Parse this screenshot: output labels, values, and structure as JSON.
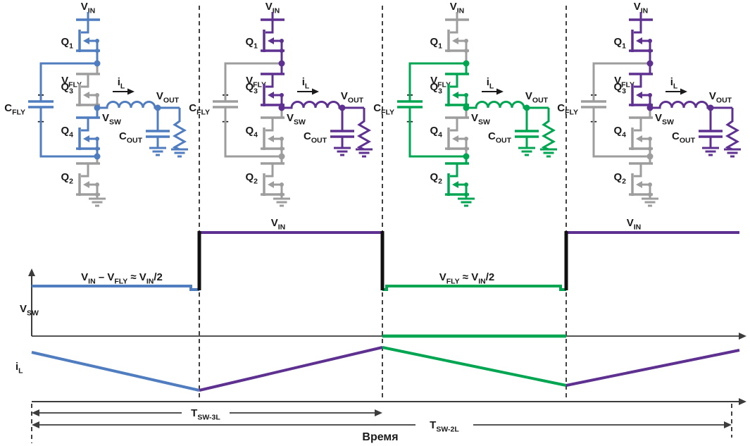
{
  "figure": {
    "type": "3-level buck converter switching states and waveforms",
    "background": "#ffffff"
  },
  "colors": {
    "blue": "#4f7dbf",
    "purple": "#5e3191",
    "green": "#00a551",
    "gray": "#9d9d9d",
    "ink": "#1a1a1a",
    "axis": "#3c3c3c",
    "step": "#111111"
  },
  "labels": {
    "vin": [
      {
        "t": "V"
      },
      {
        "s": "IN"
      }
    ],
    "q1": [
      {
        "t": "Q"
      },
      {
        "s": "1"
      }
    ],
    "q3": [
      {
        "t": "Q"
      },
      {
        "s": "3"
      }
    ],
    "q4": [
      {
        "t": "Q"
      },
      {
        "s": "4"
      }
    ],
    "q2": [
      {
        "t": "Q"
      },
      {
        "s": "2"
      }
    ],
    "vfly": [
      {
        "t": "V"
      },
      {
        "s": "FLY"
      }
    ],
    "plus": "+",
    "minus": "–",
    "cfly": [
      {
        "t": "C"
      },
      {
        "s": "FLY"
      }
    ],
    "il": [
      {
        "t": "i"
      },
      {
        "s": "L"
      }
    ],
    "vsw": [
      {
        "t": "V"
      },
      {
        "s": "SW"
      }
    ],
    "vout": [
      {
        "t": "V"
      },
      {
        "s": "OUT"
      }
    ],
    "cout": [
      {
        "t": "C"
      },
      {
        "s": "OUT"
      }
    ]
  },
  "circuits": [
    {
      "name": "state-1",
      "accent": "blue",
      "switches_on": [
        "Q1",
        "Q4"
      ],
      "active": {
        "vin_lead": true,
        "q1": true,
        "q3": false,
        "q4": true,
        "q2": false,
        "cfly": true,
        "node_b": true
      }
    },
    {
      "name": "state-2",
      "accent": "purple",
      "switches_on": [
        "Q1",
        "Q3"
      ],
      "active": {
        "vin_lead": true,
        "q1": true,
        "q3": true,
        "q4": false,
        "q2": false,
        "cfly": false,
        "node_b": false
      }
    },
    {
      "name": "state-3",
      "accent": "green",
      "switches_on": [
        "Q2",
        "Q3"
      ],
      "active": {
        "vin_lead": false,
        "q1": false,
        "q3": true,
        "q4": false,
        "q2": true,
        "cfly": true,
        "node_b": true
      }
    },
    {
      "name": "state-4",
      "accent": "purple",
      "switches_on": [
        "Q1",
        "Q3"
      ],
      "active": {
        "vin_lead": true,
        "q1": true,
        "q3": true,
        "q4": false,
        "q2": false,
        "cfly": false,
        "node_b": false
      }
    }
  ],
  "waveform": {
    "vsw_axis_label": [
      {
        "t": "V"
      },
      {
        "s": "SW"
      }
    ],
    "il_axis_label": [
      {
        "t": "i"
      },
      {
        "s": "L"
      }
    ],
    "vin_label": [
      {
        "t": "V"
      },
      {
        "s": "IN"
      }
    ],
    "level_blue_label": [
      {
        "t": "V"
      },
      {
        "s": "IN"
      },
      {
        "t": " – V"
      },
      {
        "s": "FLY"
      },
      {
        "t": " ≈ V"
      },
      {
        "s": "IN"
      },
      {
        "t": "/2"
      }
    ],
    "level_green_label": [
      {
        "t": "V"
      },
      {
        "s": "FLY"
      },
      {
        "t": " ≈ V"
      },
      {
        "s": "IN"
      },
      {
        "t": "/2"
      }
    ],
    "tsw3l": [
      {
        "t": "T"
      },
      {
        "s": "SW-3L"
      }
    ],
    "tsw2l": [
      {
        "t": "T"
      },
      {
        "s": "SW-2L"
      }
    ],
    "time_label": "Время",
    "phases": [
      {
        "interval": 1,
        "vsw_level": "VIN − VFLY ≈ VIN/2",
        "color": "blue",
        "il": "falling"
      },
      {
        "interval": 2,
        "vsw_level": "VIN",
        "color": "purple",
        "il": "rising"
      },
      {
        "interval": 3,
        "vsw_level": "VFLY ≈ VIN/2",
        "color": "green",
        "il": "falling"
      },
      {
        "interval": 4,
        "vsw_level": "VIN",
        "color": "purple",
        "il": "rising"
      }
    ],
    "periods": {
      "tsw3l_span": "half cycle (states 1–2)",
      "tsw2l_span": "full cycle (states 1–4)"
    }
  }
}
